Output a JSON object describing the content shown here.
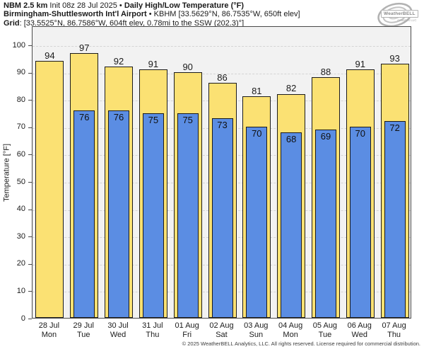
{
  "title": {
    "model": "NBM 2.5 km",
    "init": "Init 08z 28 Jul 2025",
    "bullet": "•",
    "product": "Daily High/Low Temperature (°F)",
    "station": "Birmingham-Shuttlesworth Int'l Airport",
    "station_meta": "KBHM [33.5629°N, 86.7535°W, 650ft elev]",
    "grid_label": "Grid",
    "grid_meta": ": [33.5525°N, 86.7586°W, 604ft elev, 0.78mi to the SSW (202.3)°]"
  },
  "logo": {
    "brand": "WeatherBELL",
    "sub": "Analytics LLC"
  },
  "chart_data": {
    "type": "bar",
    "title": "NBM 2.5 km Daily High/Low Temperature (°F) — KBHM Birmingham",
    "ylabel": "Temperature [°F]",
    "ylim": [
      0,
      107
    ],
    "yticks": [
      0,
      10,
      20,
      30,
      40,
      50,
      60,
      70,
      80,
      90,
      100
    ],
    "grid": "horizontal-dashed",
    "legend_position": "none",
    "categories": [
      "28 Jul",
      "29 Jul",
      "30 Jul",
      "31 Jul",
      "01 Aug",
      "02 Aug",
      "03 Aug",
      "04 Aug",
      "05 Aug",
      "06 Aug",
      "07 Aug"
    ],
    "weekdays": [
      "Mon",
      "Tue",
      "Wed",
      "Thu",
      "Fri",
      "Sat",
      "Sun",
      "Mon",
      "Tue",
      "Wed",
      "Thu"
    ],
    "series": [
      {
        "name": "High",
        "color": "#FBE173",
        "values": [
          94,
          97,
          92,
          91,
          90,
          86,
          81,
          82,
          88,
          91,
          93
        ]
      },
      {
        "name": "Low",
        "color": "#5B8DE3",
        "values": [
          null,
          76,
          76,
          75,
          75,
          73,
          70,
          68,
          69,
          70,
          72
        ]
      }
    ]
  },
  "footer": {
    "copyright": "© 2025 WeatherBELL Analytics, LLC. All rights reserved. License required for commercial distribution."
  },
  "colors": {
    "high_bar": "#FBE173",
    "low_bar": "#5B8DE3",
    "bar_border": "#1b1b1b",
    "plot_bg": "#f2f2f2",
    "gridline": "#d4d4d4",
    "frame": "#4a4a4a"
  }
}
